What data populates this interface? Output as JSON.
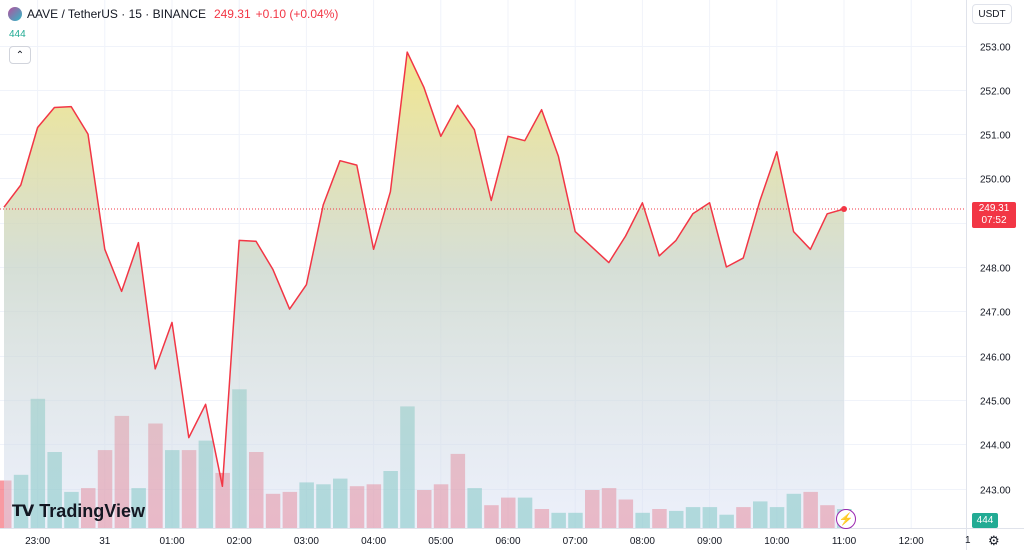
{
  "header": {
    "symbol": "AAVE / TetherUS · 15 · BINANCE",
    "price": "249.31",
    "change": "+0.10 (+0.04%)"
  },
  "volume_label": "444",
  "currency": "USDT",
  "last_price_tag": {
    "price": "249.31",
    "countdown": "07:52"
  },
  "volume_tag": "444",
  "logo_text": "TradingView",
  "scale_mode": "1",
  "colors": {
    "line": "#f23645",
    "up_volume": "#22ab94",
    "down_volume": "#f23645",
    "accent": "#2962ff"
  },
  "chart_data": {
    "type": "area",
    "x_labels": [
      "23:00",
      "31",
      "01:00",
      "02:00",
      "03:00",
      "04:00",
      "05:00",
      "06:00",
      "07:00",
      "08:00",
      "09:00",
      "10:00",
      "11:00",
      "12:00"
    ],
    "y_ticks": [
      243.0,
      244.0,
      245.0,
      246.0,
      247.0,
      248.0,
      249.0,
      250.0,
      251.0,
      252.0,
      253.0
    ],
    "ylim": [
      242.3,
      253.4
    ],
    "series": [
      {
        "values": [
          249.35,
          249.85,
          251.15,
          251.6,
          251.62,
          251.0,
          248.4,
          247.45,
          248.55,
          245.7,
          246.75,
          244.15,
          244.9,
          243.05,
          248.6,
          248.58,
          247.95,
          247.05,
          247.6,
          249.4,
          250.4,
          250.3,
          248.4,
          249.7,
          252.85,
          252.05,
          250.95,
          251.65,
          251.1,
          249.5,
          250.95,
          250.85,
          251.55,
          250.5,
          248.8,
          248.45,
          248.1,
          248.7,
          249.45,
          248.25,
          248.6,
          249.2,
          249.45,
          248.0,
          248.2,
          249.5,
          250.6,
          248.8,
          248.4,
          249.2,
          249.31
        ]
      }
    ],
    "volume": [
      {
        "v": 0.25,
        "up": false
      },
      {
        "v": 0.28,
        "up": true
      },
      {
        "v": 0.68,
        "up": true
      },
      {
        "v": 0.4,
        "up": true
      },
      {
        "v": 0.19,
        "up": true
      },
      {
        "v": 0.21,
        "up": false
      },
      {
        "v": 0.41,
        "up": false
      },
      {
        "v": 0.59,
        "up": false
      },
      {
        "v": 0.21,
        "up": true
      },
      {
        "v": 0.55,
        "up": false
      },
      {
        "v": 0.41,
        "up": true
      },
      {
        "v": 0.41,
        "up": false
      },
      {
        "v": 0.46,
        "up": true
      },
      {
        "v": 0.29,
        "up": false
      },
      {
        "v": 0.73,
        "up": true
      },
      {
        "v": 0.4,
        "up": false
      },
      {
        "v": 0.18,
        "up": false
      },
      {
        "v": 0.19,
        "up": false
      },
      {
        "v": 0.24,
        "up": true
      },
      {
        "v": 0.23,
        "up": true
      },
      {
        "v": 0.26,
        "up": true
      },
      {
        "v": 0.22,
        "up": false
      },
      {
        "v": 0.23,
        "up": false
      },
      {
        "v": 0.3,
        "up": true
      },
      {
        "v": 0.64,
        "up": true
      },
      {
        "v": 0.2,
        "up": false
      },
      {
        "v": 0.23,
        "up": false
      },
      {
        "v": 0.39,
        "up": false
      },
      {
        "v": 0.21,
        "up": true
      },
      {
        "v": 0.12,
        "up": false
      },
      {
        "v": 0.16,
        "up": false
      },
      {
        "v": 0.16,
        "up": true
      },
      {
        "v": 0.1,
        "up": false
      },
      {
        "v": 0.08,
        "up": true
      },
      {
        "v": 0.08,
        "up": true
      },
      {
        "v": 0.2,
        "up": false
      },
      {
        "v": 0.21,
        "up": false
      },
      {
        "v": 0.15,
        "up": false
      },
      {
        "v": 0.08,
        "up": true
      },
      {
        "v": 0.1,
        "up": false
      },
      {
        "v": 0.09,
        "up": true
      },
      {
        "v": 0.11,
        "up": true
      },
      {
        "v": 0.11,
        "up": true
      },
      {
        "v": 0.07,
        "up": true
      },
      {
        "v": 0.11,
        "up": false
      },
      {
        "v": 0.14,
        "up": true
      },
      {
        "v": 0.11,
        "up": true
      },
      {
        "v": 0.18,
        "up": true
      },
      {
        "v": 0.19,
        "up": false
      },
      {
        "v": 0.12,
        "up": false
      },
      {
        "v": 0.1,
        "up": true
      }
    ]
  }
}
